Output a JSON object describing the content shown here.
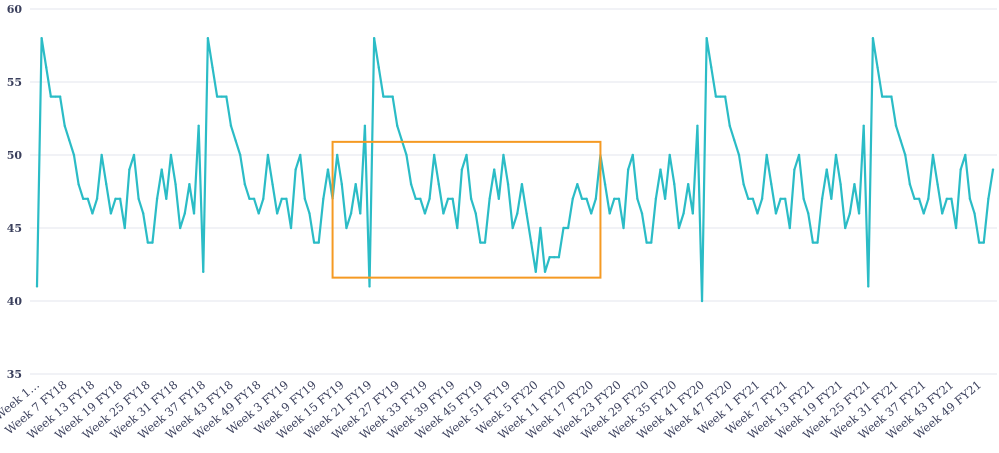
{
  "chart_data": {
    "type": "line",
    "title": "",
    "xlabel": "",
    "ylabel": "",
    "ylim": [
      35,
      60
    ],
    "yticks": [
      35,
      40,
      45,
      50,
      55,
      60
    ],
    "grid": true,
    "legend": "none",
    "colors": {
      "line": "#2bbcc6",
      "highlight_box": "#f59a23",
      "grid": "#e3e5ec",
      "text": "#3a3f5c"
    },
    "x_tick_labels": [
      "Week 1…",
      "Week 7 FY18",
      "Week 13 FY18",
      "Week 19 FY18",
      "Week 25 FY18",
      "Week 31 FY18",
      "Week 37 FY18",
      "Week 43 FY18",
      "Week 49 FY18",
      "Week 3 FY19",
      "Week 9 FY19",
      "Week 15 FY19",
      "Week 21 FY19",
      "Week 27 FY19",
      "Week 33 FY19",
      "Week 39 FY19",
      "Week 45 FY19",
      "Week 51 FY19",
      "Week 5 FY20",
      "Week 11 FY20",
      "Week 17 FY20",
      "Week 23 FY20",
      "Week 29 FY20",
      "Week 35 FY20",
      "Week 41 FY20",
      "Week 47 FY20",
      "Week 1 FY21",
      "Week 7 FY21",
      "Week 13 FY21",
      "Week 19 FY21",
      "Week 25 FY21",
      "Week 31 FY21",
      "Week 37 FY21",
      "Week 43 FY21",
      "Week 49 FY21"
    ],
    "series": [
      {
        "values": [
          41,
          58,
          56,
          54,
          54,
          54,
          52,
          51,
          50,
          48,
          47,
          47,
          46,
          47,
          50,
          48,
          46,
          47,
          47,
          45,
          49,
          50,
          47,
          46,
          44,
          44,
          47,
          49,
          47,
          50,
          48,
          45,
          46,
          48,
          46,
          52,
          42,
          58,
          56,
          54,
          54,
          54,
          52,
          51,
          50,
          48,
          47,
          47,
          46,
          47,
          50,
          48,
          46,
          47,
          47,
          45,
          49,
          50,
          47,
          46,
          44,
          44,
          47,
          49,
          47,
          50,
          48,
          45,
          46,
          48,
          46,
          52,
          41,
          58,
          56,
          54,
          54,
          54,
          52,
          51,
          50,
          48,
          47,
          47,
          46,
          47,
          50,
          48,
          46,
          47,
          47,
          45,
          49,
          50,
          47,
          46,
          44,
          44,
          47,
          49,
          47,
          50,
          48,
          45,
          46,
          48,
          46,
          44,
          42,
          45,
          42,
          43,
          43,
          43,
          45,
          45,
          47,
          48,
          47,
          47,
          46,
          47,
          50,
          48,
          46,
          47,
          47,
          45,
          49,
          50,
          47,
          46,
          44,
          44,
          47,
          49,
          47,
          50,
          48,
          45,
          46,
          48,
          46,
          52,
          40,
          58,
          56,
          54,
          54,
          54,
          52,
          51,
          50,
          48,
          47,
          47,
          46,
          47,
          50,
          48,
          46,
          47,
          47,
          45,
          49,
          50,
          47,
          46,
          44,
          44,
          47,
          49,
          47,
          50,
          48,
          45,
          46,
          48,
          46,
          52,
          41,
          58,
          56,
          54,
          54,
          54,
          52,
          51,
          50,
          48,
          47,
          47,
          46,
          47,
          50,
          48,
          46,
          47,
          47,
          45,
          49,
          50,
          47,
          46,
          44,
          44,
          47,
          49
        ]
      }
    ],
    "highlight": {
      "x_start_index": 64,
      "x_end_index": 122,
      "y_low": 41.6,
      "y_high": 50.9
    }
  }
}
